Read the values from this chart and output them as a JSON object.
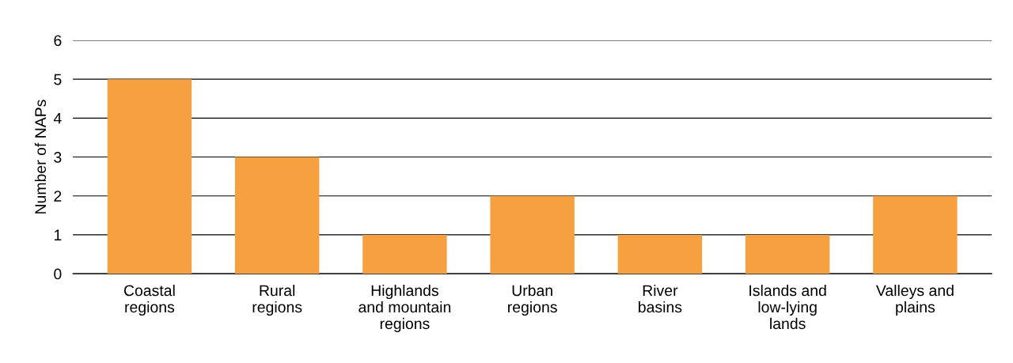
{
  "chart_data": {
    "type": "bar",
    "ylabel": "Number of NAPs",
    "categories": [
      "Coastal\nregions",
      "Rural\nregions",
      "Highlands\nand mountain\nregions",
      "Urban\nregions",
      "River\nbasins",
      "Islands and\nlow-lying\nlands",
      "Valleys and\nplains"
    ],
    "values": [
      5,
      3,
      1,
      2,
      1,
      1,
      2
    ],
    "color": "#f7a040",
    "ylim": [
      0,
      6
    ],
    "yticks": [
      0,
      1,
      2,
      3,
      4,
      5,
      6
    ],
    "grid": "y"
  }
}
